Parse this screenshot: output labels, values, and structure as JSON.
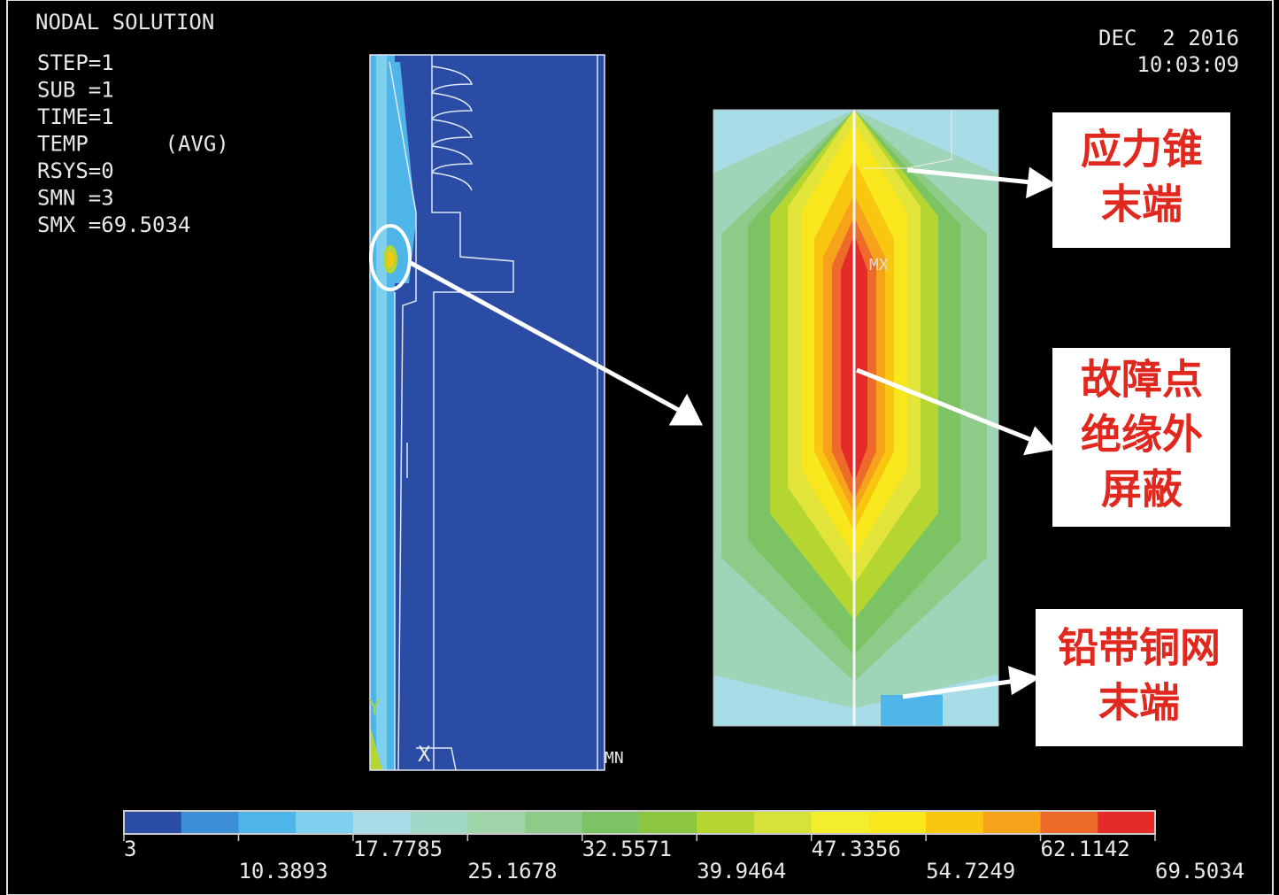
{
  "header": {
    "title": "NODAL SOLUTION",
    "info": [
      "STEP=1",
      "SUB =1",
      "TIME=1",
      "TEMP      (AVG)",
      "RSYS=0",
      "SMN =3",
      "SMX =69.5034"
    ],
    "date": "DEC  2 2016",
    "time": "10:03:09"
  },
  "model": {
    "max_label": "MX",
    "min_label": "MN",
    "x_axis": "X",
    "y_axis": "Y"
  },
  "colorbar": {
    "colors": [
      "#2a4ca5",
      "#3c8fd6",
      "#4db5e8",
      "#7fd0ee",
      "#a8dde8",
      "#a0d8c8",
      "#9fd4a8",
      "#8fcb88",
      "#7cc463",
      "#8cc63f",
      "#b5d531",
      "#d6e23a",
      "#f2ee2c",
      "#f8e71c",
      "#f9c710",
      "#f7a21b",
      "#ee6a2b",
      "#e52a2a"
    ],
    "ticks": [
      3,
      10.3893,
      17.7785,
      25.1678,
      32.5571,
      39.9464,
      47.3356,
      54.7249,
      62.1142,
      69.5034
    ]
  },
  "callouts": [
    {
      "lines": [
        "应力锥",
        "末端"
      ]
    },
    {
      "lines": [
        "故障点",
        "绝缘外",
        "屏蔽"
      ]
    },
    {
      "lines": [
        "铅带铜网",
        "末端"
      ]
    }
  ]
}
